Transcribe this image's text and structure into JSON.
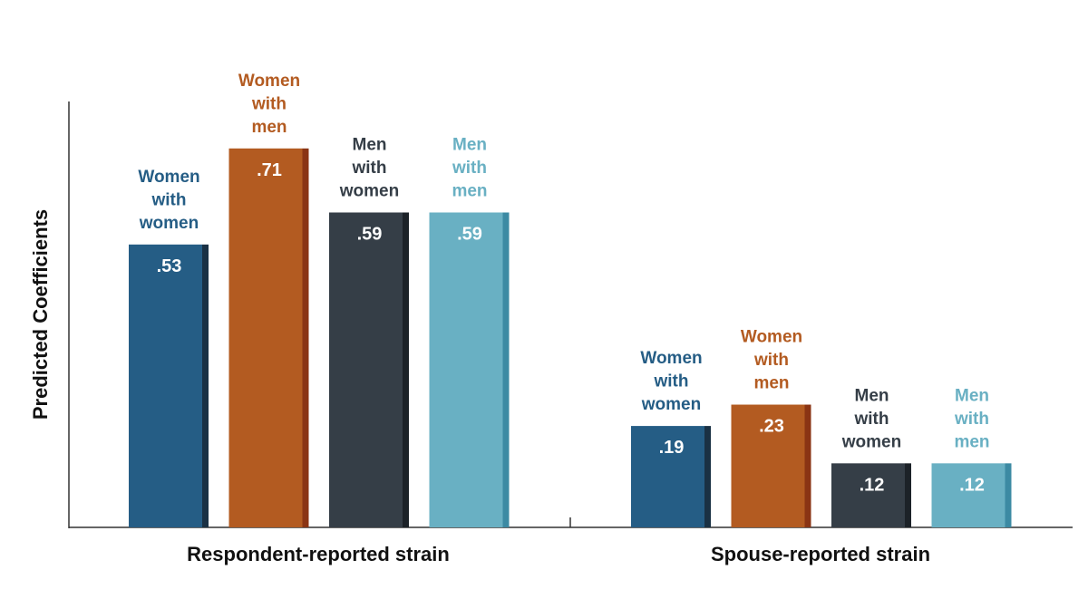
{
  "chart_data": {
    "type": "bar",
    "ylabel": "Predicted Coefficients",
    "ylim": [
      0,
      0.8
    ],
    "grid": false,
    "legend": "none",
    "categories": [
      "Respondent-reported strain",
      "Spouse-reported strain"
    ],
    "series": [
      {
        "name": "Women with women",
        "label_lines": [
          "Women",
          "with",
          "women"
        ],
        "color": "#255d85",
        "shade": "#1a3144",
        "value_labels": [
          ".53",
          ".19"
        ],
        "values": [
          0.53,
          0.19
        ]
      },
      {
        "name": "Women with men",
        "label_lines": [
          "Women",
          "with",
          "men"
        ],
        "color": "#b35b21",
        "shade": "#8a3414",
        "value_labels": [
          ".71",
          ".23"
        ],
        "values": [
          0.71,
          0.23
        ]
      },
      {
        "name": "Men with women",
        "label_lines": [
          "Men",
          "with",
          "women"
        ],
        "color": "#353e47",
        "shade": "#1c2228",
        "value_labels": [
          ".59",
          ".12"
        ],
        "values": [
          0.59,
          0.12
        ]
      },
      {
        "name": "Men with men",
        "label_lines": [
          "Men",
          "with",
          "men"
        ],
        "color": "#69b0c3",
        "shade": "#3c8aa3",
        "value_labels": [
          ".59",
          ".12"
        ],
        "values": [
          0.59,
          0.12
        ]
      }
    ]
  }
}
